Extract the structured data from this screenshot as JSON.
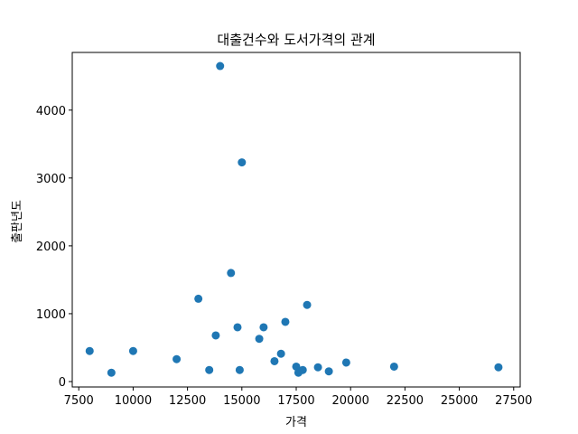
{
  "chart_data": {
    "type": "scatter",
    "title": "대출건수와 도서가격의 관계",
    "xlabel": "가격",
    "ylabel": "출판년도",
    "xlim": [
      7200,
      27800
    ],
    "ylim": [
      -80,
      4850
    ],
    "xticks": [
      7500,
      10000,
      12500,
      15000,
      17500,
      20000,
      22500,
      25000,
      27500
    ],
    "yticks": [
      0,
      1000,
      2000,
      3000,
      4000
    ],
    "color": "#1f77b4",
    "grid": false,
    "x": [
      8000,
      9000,
      10000,
      12000,
      13000,
      13500,
      13800,
      14000,
      14500,
      14800,
      14900,
      15000,
      15800,
      16000,
      16500,
      16800,
      17000,
      17500,
      17600,
      17800,
      18000,
      18500,
      19000,
      19800,
      22000,
      26800
    ],
    "y": [
      450,
      130,
      450,
      330,
      1220,
      170,
      680,
      4650,
      1600,
      800,
      170,
      3230,
      630,
      800,
      300,
      410,
      880,
      220,
      130,
      170,
      1130,
      210,
      150,
      280,
      220,
      210
    ]
  }
}
